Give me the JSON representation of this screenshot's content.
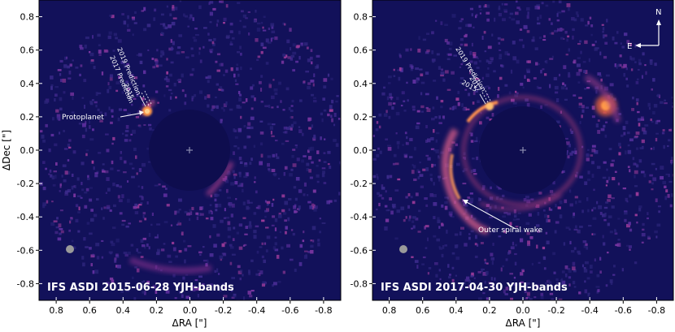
{
  "panels": [
    {
      "title": "IFS ASDI 2015-06-28 YJH-bands",
      "xlabel": "ΔRA [\"]",
      "ylabel": "ΔDec [\"]",
      "xticks": [
        "0.8",
        "0.6",
        "0.4",
        "0.2",
        "0.0",
        "-0.2",
        "-0.4",
        "-0.6",
        "-0.8"
      ],
      "yticks": [
        "0.8",
        "0.6",
        "0.4",
        "0.2",
        "0.0",
        "-0.2",
        "-0.4",
        "-0.6",
        "-0.8"
      ],
      "annotations": {
        "protoplanet": "Protoplanet",
        "pred_2019": "2019 Prediction",
        "pred_2017": "2017 Prediction",
        "epoch_2015": "2015"
      }
    },
    {
      "title": "IFS ASDI 2017-04-30 YJH-bands",
      "xlabel": "ΔRA [\"]",
      "xticks": [
        "0.8",
        "0.6",
        "0.4",
        "0.2",
        "0.0",
        "-0.2",
        "-0.4",
        "-0.6",
        "-0.8"
      ],
      "yticks": [
        "0.8",
        "0.6",
        "0.4",
        "0.2",
        "0.0",
        "-0.2",
        "-0.4",
        "-0.6",
        "-0.8"
      ],
      "annotations": {
        "spiral": "Outer spiral wake",
        "pred_2019": "2019 Prediction",
        "epoch_2017": "2017",
        "epoch_2015": "2015"
      },
      "compass": {
        "north": "N",
        "east": "E"
      }
    }
  ],
  "colors": {
    "background": "#12115a",
    "mask": "#0e0d4e",
    "emission_low": "#5a2a9a",
    "emission_mid": "#c23c8c",
    "emission_high": "#f07a3a",
    "text": "#ffffff"
  }
}
